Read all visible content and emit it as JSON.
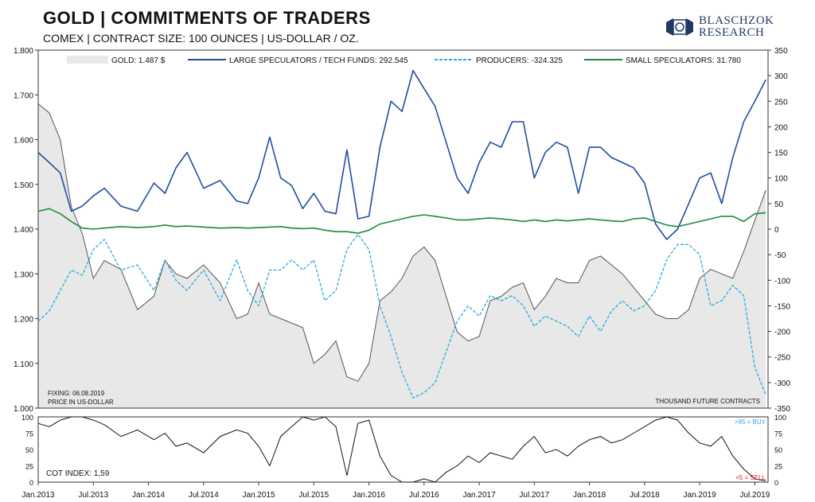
{
  "header": {
    "title": "GOLD | COMMITMENTS OF TRADERS",
    "subtitle": "COMEX | CONTRACT SIZE: 100 OUNCES | US-DOLLAR / OZ."
  },
  "logo": {
    "line1": "BLASCHZOK",
    "line2": "RESEARCH",
    "color": "#1f3864"
  },
  "chart_data": [
    {
      "type": "line",
      "panel": "main",
      "x_tick_labels": [
        "Jan.2013",
        "Jul.2013",
        "Jan.2014",
        "Jul.2014",
        "Jan.2015",
        "Jul.2015",
        "Jan.2016",
        "Jul.2016",
        "Jan.2017",
        "Jul.2017",
        "Jan.2018",
        "Jul.2018",
        "Jan.2019",
        "Jul.2019"
      ],
      "xlim": [
        "2013-01",
        "2019-08"
      ],
      "y_left": {
        "label": "PRICE IN US-DOLLAR",
        "ylim": [
          1000,
          1800
        ],
        "tick_labels": [
          "1.000",
          "1.100",
          "1.200",
          "1.300",
          "1.400",
          "1.500",
          "1.600",
          "1.700",
          "1.800"
        ]
      },
      "y_right": {
        "label": "THOUSAND FUTURE CONTRACTS",
        "ylim": [
          -350,
          350
        ],
        "tick_labels": [
          "-350",
          "-300",
          "-250",
          "-200",
          "-150",
          "-100",
          "-50",
          "0",
          "50",
          "100",
          "150",
          "200",
          "250",
          "300",
          "350"
        ]
      },
      "annotations": [
        "FIXING: 06.08.2019",
        "PRICE IN US-DOLLAR",
        "THOUSAND FUTURE CONTRACTS"
      ],
      "legend_position": "top",
      "grid": false,
      "series": [
        {
          "name": "GOLD: 1.487 $",
          "axis": "left",
          "style": "area",
          "color": "#e8e8e8",
          "line_color": "#555555",
          "x": [
            2013.0,
            2013.1,
            2013.2,
            2013.3,
            2013.4,
            2013.5,
            2013.6,
            2013.75,
            2013.9,
            2014.05,
            2014.15,
            2014.25,
            2014.35,
            2014.5,
            2014.65,
            2014.8,
            2014.9,
            2015.0,
            2015.1,
            2015.2,
            2015.3,
            2015.4,
            2015.5,
            2015.6,
            2015.7,
            2015.8,
            2015.9,
            2016.0,
            2016.1,
            2016.2,
            2016.3,
            2016.4,
            2016.5,
            2016.6,
            2016.7,
            2016.8,
            2016.9,
            2017.0,
            2017.1,
            2017.2,
            2017.3,
            2017.4,
            2017.5,
            2017.6,
            2017.7,
            2017.8,
            2017.9,
            2018.0,
            2018.1,
            2018.2,
            2018.3,
            2018.4,
            2018.5,
            2018.6,
            2018.7,
            2018.8,
            2018.9,
            2019.0,
            2019.1,
            2019.2,
            2019.3,
            2019.4,
            2019.5,
            2019.6
          ],
          "values": [
            1680,
            1660,
            1600,
            1450,
            1390,
            1290,
            1330,
            1310,
            1220,
            1250,
            1330,
            1300,
            1290,
            1320,
            1280,
            1200,
            1210,
            1280,
            1210,
            1200,
            1190,
            1180,
            1100,
            1120,
            1150,
            1070,
            1060,
            1100,
            1240,
            1260,
            1290,
            1340,
            1360,
            1330,
            1250,
            1170,
            1150,
            1160,
            1240,
            1250,
            1270,
            1280,
            1220,
            1250,
            1290,
            1280,
            1280,
            1330,
            1340,
            1320,
            1300,
            1270,
            1240,
            1210,
            1200,
            1200,
            1220,
            1290,
            1310,
            1300,
            1290,
            1350,
            1420,
            1487
          ]
        },
        {
          "name": "LARGE SPECULATORS / TECH FUNDS: 292.545",
          "axis": "right",
          "style": "solid",
          "color": "#1f4ea1",
          "x": [
            2013.0,
            2013.1,
            2013.2,
            2013.3,
            2013.4,
            2013.5,
            2013.6,
            2013.75,
            2013.9,
            2014.05,
            2014.15,
            2014.25,
            2014.35,
            2014.5,
            2014.65,
            2014.8,
            2014.9,
            2015.0,
            2015.1,
            2015.2,
            2015.3,
            2015.4,
            2015.5,
            2015.6,
            2015.7,
            2015.8,
            2015.9,
            2016.0,
            2016.1,
            2016.2,
            2016.3,
            2016.4,
            2016.5,
            2016.6,
            2016.7,
            2016.8,
            2016.9,
            2017.0,
            2017.1,
            2017.2,
            2017.3,
            2017.4,
            2017.5,
            2017.6,
            2017.7,
            2017.8,
            2017.9,
            2018.0,
            2018.1,
            2018.2,
            2018.3,
            2018.4,
            2018.5,
            2018.6,
            2018.7,
            2018.8,
            2018.9,
            2019.0,
            2019.1,
            2019.2,
            2019.3,
            2019.4,
            2019.5,
            2019.6
          ],
          "values": [
            150,
            130,
            110,
            35,
            45,
            65,
            80,
            45,
            35,
            90,
            70,
            120,
            150,
            80,
            95,
            55,
            50,
            100,
            180,
            100,
            85,
            40,
            70,
            35,
            30,
            155,
            20,
            25,
            160,
            250,
            230,
            310,
            275,
            240,
            170,
            100,
            70,
            130,
            170,
            160,
            210,
            210,
            100,
            150,
            170,
            160,
            70,
            160,
            160,
            140,
            130,
            120,
            90,
            10,
            -20,
            0,
            50,
            100,
            110,
            50,
            140,
            210,
            250,
            292
          ]
        },
        {
          "name": "PRODUCERS: -324.325",
          "axis": "right",
          "style": "dashed",
          "color": "#29a9e0",
          "x": [
            2013.0,
            2013.1,
            2013.2,
            2013.3,
            2013.4,
            2013.5,
            2013.6,
            2013.75,
            2013.9,
            2014.05,
            2014.15,
            2014.25,
            2014.35,
            2014.5,
            2014.65,
            2014.8,
            2014.9,
            2015.0,
            2015.1,
            2015.2,
            2015.3,
            2015.4,
            2015.5,
            2015.6,
            2015.7,
            2015.8,
            2015.9,
            2016.0,
            2016.1,
            2016.2,
            2016.3,
            2016.4,
            2016.5,
            2016.6,
            2016.7,
            2016.8,
            2016.9,
            2017.0,
            2017.1,
            2017.2,
            2017.3,
            2017.4,
            2017.5,
            2017.6,
            2017.7,
            2017.8,
            2017.9,
            2018.0,
            2018.1,
            2018.2,
            2018.3,
            2018.4,
            2018.5,
            2018.6,
            2018.7,
            2018.8,
            2018.9,
            2019.0,
            2019.1,
            2019.2,
            2019.3,
            2019.4,
            2019.5,
            2019.6
          ],
          "values": [
            -180,
            -160,
            -120,
            -80,
            -90,
            -40,
            -20,
            -80,
            -70,
            -120,
            -60,
            -100,
            -120,
            -80,
            -140,
            -60,
            -120,
            -150,
            -80,
            -80,
            -60,
            -80,
            -60,
            -140,
            -120,
            -40,
            -10,
            -40,
            -150,
            -210,
            -280,
            -330,
            -320,
            -300,
            -240,
            -180,
            -150,
            -170,
            -130,
            -140,
            -130,
            -150,
            -190,
            -170,
            -180,
            -190,
            -210,
            -170,
            -200,
            -160,
            -140,
            -160,
            -150,
            -120,
            -60,
            -30,
            -30,
            -50,
            -150,
            -140,
            -110,
            -130,
            -270,
            -324
          ]
        },
        {
          "name": "SMALL SPECULATORS: 31.780",
          "axis": "right",
          "style": "solid",
          "color": "#1e8a3c",
          "x": [
            2013.0,
            2013.1,
            2013.2,
            2013.3,
            2013.4,
            2013.5,
            2013.6,
            2013.75,
            2013.9,
            2014.05,
            2014.15,
            2014.25,
            2014.35,
            2014.5,
            2014.65,
            2014.8,
            2014.9,
            2015.0,
            2015.1,
            2015.2,
            2015.3,
            2015.4,
            2015.5,
            2015.6,
            2015.7,
            2015.8,
            2015.9,
            2016.0,
            2016.1,
            2016.2,
            2016.3,
            2016.4,
            2016.5,
            2016.6,
            2016.7,
            2016.8,
            2016.9,
            2017.0,
            2017.1,
            2017.2,
            2017.3,
            2017.4,
            2017.5,
            2017.6,
            2017.7,
            2017.8,
            2017.9,
            2018.0,
            2018.1,
            2018.2,
            2018.3,
            2018.4,
            2018.5,
            2018.6,
            2018.7,
            2018.8,
            2018.9,
            2019.0,
            2019.1,
            2019.2,
            2019.3,
            2019.4,
            2019.5,
            2019.6
          ],
          "values": [
            35,
            40,
            30,
            15,
            2,
            0,
            2,
            5,
            3,
            5,
            8,
            5,
            6,
            4,
            2,
            3,
            2,
            3,
            4,
            5,
            2,
            1,
            2,
            -2,
            -5,
            -5,
            -8,
            -2,
            10,
            15,
            20,
            25,
            28,
            25,
            22,
            18,
            18,
            20,
            22,
            20,
            18,
            15,
            18,
            15,
            18,
            16,
            18,
            20,
            18,
            16,
            15,
            20,
            22,
            15,
            8,
            5,
            10,
            15,
            20,
            25,
            25,
            15,
            30,
            32
          ]
        }
      ]
    },
    {
      "type": "line",
      "panel": "cot_index",
      "ylim": [
        0,
        100
      ],
      "tick_labels": [
        "0",
        "25",
        "50",
        "75",
        "100"
      ],
      "annotations": [
        "COT INDEX: 1,59",
        ">95 = BUY",
        "<5 = SELL"
      ],
      "signal_colors": {
        "buy": "#29a9e0",
        "sell": "#e02020"
      },
      "series": [
        {
          "name": "COT INDEX: 1,59",
          "color": "#111111",
          "x": [
            2013.0,
            2013.1,
            2013.2,
            2013.3,
            2013.4,
            2013.5,
            2013.6,
            2013.75,
            2013.9,
            2014.05,
            2014.15,
            2014.25,
            2014.35,
            2014.5,
            2014.65,
            2014.8,
            2014.9,
            2015.0,
            2015.1,
            2015.2,
            2015.3,
            2015.4,
            2015.5,
            2015.6,
            2015.7,
            2015.8,
            2015.9,
            2016.0,
            2016.1,
            2016.2,
            2016.3,
            2016.4,
            2016.5,
            2016.6,
            2016.7,
            2016.8,
            2016.9,
            2017.0,
            2017.1,
            2017.2,
            2017.3,
            2017.4,
            2017.5,
            2017.6,
            2017.7,
            2017.8,
            2017.9,
            2018.0,
            2018.1,
            2018.2,
            2018.3,
            2018.4,
            2018.5,
            2018.6,
            2018.7,
            2018.8,
            2018.9,
            2019.0,
            2019.1,
            2019.2,
            2019.3,
            2019.4,
            2019.5,
            2019.6
          ],
          "values": [
            90,
            85,
            95,
            100,
            100,
            95,
            88,
            70,
            80,
            65,
            75,
            55,
            60,
            45,
            70,
            80,
            75,
            55,
            25,
            70,
            85,
            100,
            95,
            100,
            85,
            10,
            90,
            95,
            40,
            10,
            0,
            0,
            5,
            0,
            15,
            25,
            40,
            30,
            45,
            40,
            35,
            55,
            70,
            45,
            50,
            40,
            55,
            65,
            70,
            60,
            65,
            75,
            85,
            95,
            100,
            95,
            75,
            60,
            55,
            70,
            40,
            20,
            5,
            2
          ]
        }
      ]
    }
  ]
}
